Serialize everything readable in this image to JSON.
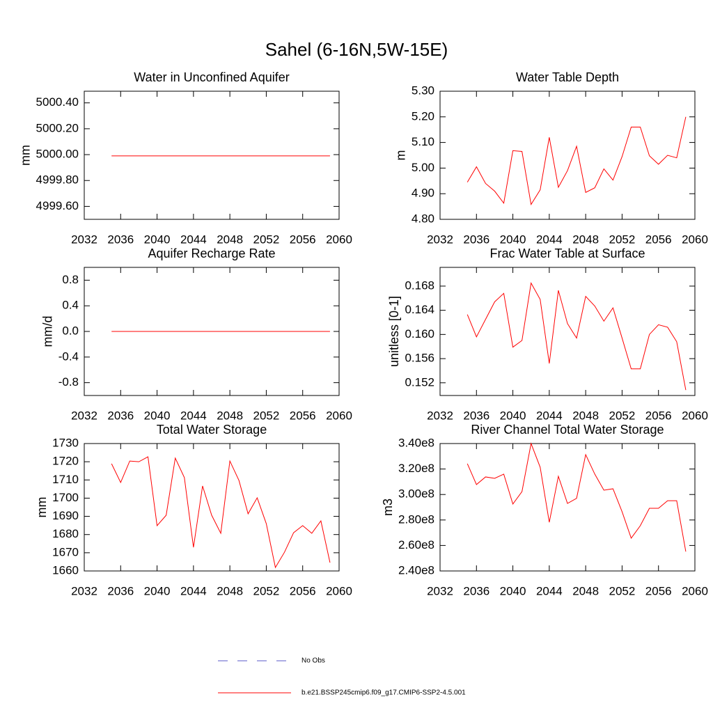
{
  "title": "Sahel (6-16N,5W-15E)",
  "legend": [
    {
      "name": "No Obs",
      "color": "#5a5ac8",
      "dash": true
    },
    {
      "name": "b.e21.BSSP245cmip6.f09_g17.CMIP6-SSP2-4.5.001",
      "color": "#ff0000",
      "dash": false
    }
  ],
  "chart_data": [
    {
      "type": "line",
      "title": "Water in Unconfined Aquifer",
      "y_label": "mm",
      "color": "#ff0000",
      "x": [
        2035,
        2036,
        2037,
        2038,
        2039,
        2040,
        2041,
        2042,
        2043,
        2044,
        2045,
        2046,
        2047,
        2048,
        2049,
        2050,
        2051,
        2052,
        2053,
        2054,
        2055,
        2056,
        2057,
        2058,
        2059
      ],
      "values": [
        4999.99,
        4999.99,
        4999.99,
        4999.99,
        4999.99,
        4999.99,
        4999.99,
        4999.99,
        4999.99,
        4999.99,
        4999.99,
        4999.99,
        4999.99,
        4999.99,
        4999.99,
        4999.99,
        4999.99,
        4999.99,
        4999.99,
        4999.99,
        4999.99,
        4999.99,
        4999.99,
        4999.99,
        4999.99
      ],
      "xlim": [
        2032,
        2060
      ],
      "xticks": [
        2032,
        2036,
        2040,
        2044,
        2048,
        2052,
        2056,
        2060
      ],
      "ylim": [
        4999.5,
        5000.49
      ],
      "yticks": [
        {
          "value": 4999.6,
          "label": "4999.60"
        },
        {
          "value": 4999.8,
          "label": "4999.80"
        },
        {
          "value": 5000,
          "label": "5000.00"
        },
        {
          "value": 5000.2,
          "label": "5000.20"
        },
        {
          "value": 5000.4,
          "label": "5000.40"
        }
      ]
    },
    {
      "type": "line",
      "title": "Water Table Depth",
      "y_label": "m",
      "color": "#ff0000",
      "x": [
        2035,
        2036,
        2037,
        2038,
        2039,
        2040,
        2041,
        2042,
        2043,
        2044,
        2045,
        2046,
        2047,
        2048,
        2049,
        2050,
        2051,
        2052,
        2053,
        2054,
        2055,
        2056,
        2057,
        2058,
        2059
      ],
      "values": [
        4.945,
        5.005,
        4.94,
        4.91,
        4.863,
        5.068,
        5.065,
        4.858,
        4.915,
        5.12,
        4.925,
        4.99,
        5.085,
        4.905,
        4.923,
        4.997,
        4.953,
        5.045,
        5.16,
        5.16,
        5.048,
        5.015,
        5.05,
        5.04,
        5.2
      ],
      "xlim": [
        2032,
        2060
      ],
      "xticks": [
        2032,
        2036,
        2040,
        2044,
        2048,
        2052,
        2056,
        2060
      ],
      "ylim": [
        4.8,
        5.3
      ],
      "yticks": [
        {
          "value": 4.8,
          "label": "4.80"
        },
        {
          "value": 4.9,
          "label": "4.90"
        },
        {
          "value": 5,
          "label": "5.00"
        },
        {
          "value": 5.1,
          "label": "5.10"
        },
        {
          "value": 5.2,
          "label": "5.20"
        },
        {
          "value": 5.3,
          "label": "5.30"
        }
      ]
    },
    {
      "type": "line",
      "title": "Aquifer Recharge Rate",
      "y_label": "mm/d",
      "color": "#ff0000",
      "x": [
        2035,
        2036,
        2037,
        2038,
        2039,
        2040,
        2041,
        2042,
        2043,
        2044,
        2045,
        2046,
        2047,
        2048,
        2049,
        2050,
        2051,
        2052,
        2053,
        2054,
        2055,
        2056,
        2057,
        2058,
        2059
      ],
      "values": [
        0,
        0,
        0,
        0,
        0,
        0,
        0,
        0,
        0,
        0,
        0,
        0,
        0,
        0,
        0,
        0,
        0,
        0,
        0,
        0,
        0,
        0,
        0,
        0,
        0
      ],
      "xlim": [
        2032,
        2060
      ],
      "xticks": [
        2032,
        2036,
        2040,
        2044,
        2048,
        2052,
        2056,
        2060
      ],
      "ylim": [
        -1,
        1
      ],
      "yticks": [
        -0.8,
        -0.4,
        {
          "value": 0,
          "label": "0.0"
        },
        0.4,
        0.8
      ]
    },
    {
      "type": "line",
      "title": "Frac Water Table at Surface",
      "y_label": "unitless [0-1]",
      "color": "#ff0000",
      "x": [
        2035,
        2036,
        2037,
        2038,
        2039,
        2040,
        2041,
        2042,
        2043,
        2044,
        2045,
        2046,
        2047,
        2048,
        2049,
        2050,
        2051,
        2052,
        2053,
        2054,
        2055,
        2056,
        2057,
        2058,
        2059
      ],
      "values": [
        0.1633,
        0.1596,
        0.1625,
        0.1654,
        0.1668,
        0.1579,
        0.159,
        0.1685,
        0.1658,
        0.1552,
        0.1673,
        0.1618,
        0.1594,
        0.1663,
        0.1647,
        0.1622,
        0.1644,
        0.1594,
        0.1543,
        0.1543,
        0.16,
        0.1616,
        0.1612,
        0.1588,
        0.1508
      ],
      "xlim": [
        2032,
        2060
      ],
      "xticks": [
        2032,
        2036,
        2040,
        2044,
        2048,
        2052,
        2056,
        2060
      ],
      "ylim": [
        0.1499,
        0.1711
      ],
      "yticks": [
        0.152,
        0.156,
        {
          "value": 0.16,
          "label": "0.160"
        },
        0.164,
        0.168
      ]
    },
    {
      "type": "line",
      "title": "Total Water Storage",
      "y_label": "mm",
      "color": "#ff0000",
      "x": [
        2035,
        2036,
        2037,
        2038,
        2039,
        2040,
        2041,
        2042,
        2043,
        2044,
        2045,
        2046,
        2047,
        2048,
        2049,
        2050,
        2051,
        2052,
        2053,
        2054,
        2055,
        2056,
        2057,
        2058,
        2059
      ],
      "values": [
        1718.9,
        1708.6,
        1720.4,
        1720,
        1722.7,
        1684.9,
        1690.6,
        1722,
        1711.3,
        1673,
        1706.7,
        1690.6,
        1680.7,
        1720.4,
        1709.7,
        1691.4,
        1700.2,
        1686,
        1661.9,
        1670.3,
        1681,
        1684.9,
        1680.7,
        1687.5,
        1664.6
      ],
      "xlim": [
        2032,
        2060
      ],
      "xticks": [
        2032,
        2036,
        2040,
        2044,
        2048,
        2052,
        2056,
        2060
      ],
      "ylim": [
        1660,
        1730
      ],
      "yticks": [
        1660,
        1670,
        1680,
        1690,
        1700,
        1710,
        1720,
        1730
      ]
    },
    {
      "type": "line",
      "title": "River Channel Total Water Storage",
      "y_label": "m3",
      "color": "#ff0000",
      "x": [
        2035,
        2036,
        2037,
        2038,
        2039,
        2040,
        2041,
        2042,
        2043,
        2044,
        2045,
        2046,
        2047,
        2048,
        2049,
        2050,
        2051,
        2052,
        2053,
        2054,
        2055,
        2056,
        2057,
        2058,
        2059
      ],
      "values": [
        324200000,
        307800000,
        313800000,
        312700000,
        316000000,
        292500000,
        302300000,
        340000000,
        321400000,
        278200000,
        314300000,
        293000000,
        297000000,
        331300000,
        316000000,
        303400000,
        304500000,
        286500000,
        265700000,
        275500000,
        289200000,
        289200000,
        295100000,
        295100000,
        255200000
      ],
      "xlim": [
        2032,
        2060
      ],
      "xticks": [
        2032,
        2036,
        2040,
        2044,
        2048,
        2052,
        2056,
        2060
      ],
      "ylim": [
        240000000,
        340000000
      ],
      "yticks": [
        {
          "value": 240000000,
          "label": "2.40e8"
        },
        {
          "value": 260000000,
          "label": "2.60e8"
        },
        {
          "value": 280000000,
          "label": "2.80e8"
        },
        {
          "value": 300000000,
          "label": "3.00e8"
        },
        {
          "value": 320000000,
          "label": "3.20e8"
        },
        {
          "value": 340000000,
          "label": "3.40e8"
        }
      ]
    }
  ]
}
